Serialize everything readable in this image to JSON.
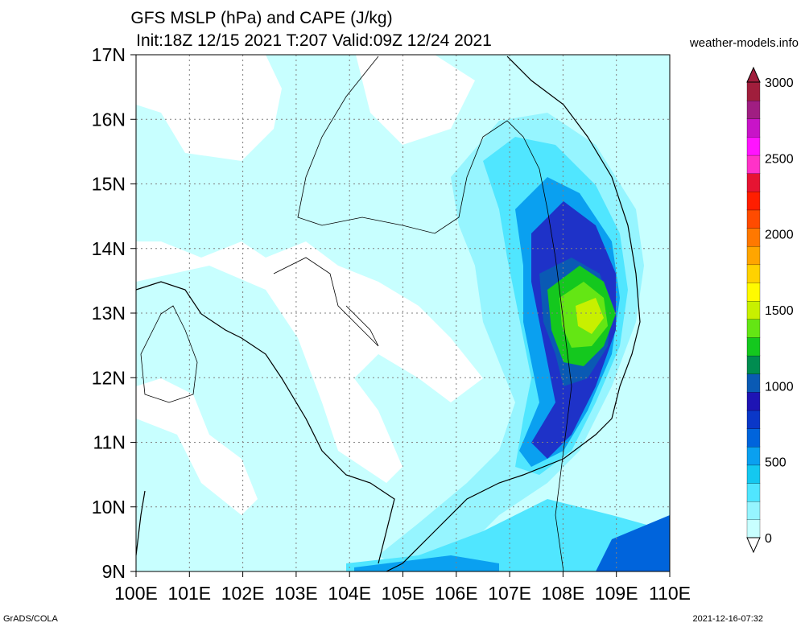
{
  "title_line1": "GFS MSLP (hPa) and CAPE (J/kg)",
  "title_line2": "Init:18Z 12/15 2021 T:207 Valid:09Z 12/24 2021",
  "site": "weather-models.info",
  "footer_left": "GrADS/COLA",
  "footer_right": "2021-12-16-07:32",
  "lat_labels": [
    "17N",
    "16N",
    "15N",
    "14N",
    "13N",
    "12N",
    "11N",
    "10N",
    "9N"
  ],
  "lon_labels": [
    "100E",
    "101E",
    "102E",
    "103E",
    "104E",
    "105E",
    "106E",
    "107E",
    "108E",
    "109E",
    "110E"
  ],
  "colorbar": {
    "labels": [
      "3000",
      "2500",
      "2000",
      "1500",
      "1000",
      "500",
      "0"
    ],
    "colors": [
      "#c8ffff",
      "#96f5ff",
      "#50e6ff",
      "#14c8f0",
      "#0aa0f0",
      "#0064dc",
      "#0a37c8",
      "#1e14b4",
      "#0a5ab4",
      "#008c50",
      "#14c81e",
      "#64e614",
      "#c8f000",
      "#fffa00",
      "#ffd200",
      "#ffa500",
      "#ff7800",
      "#ff4b00",
      "#ff1e00",
      "#e61432",
      "#ff32c8",
      "#ff14ff",
      "#c814c8",
      "#a01e82",
      "#a01e3c"
    ]
  },
  "cape_palette": {
    "none": "#ffffff",
    "c1": "#c8ffff",
    "c2": "#96f5ff",
    "c3": "#50e6ff",
    "c4": "#14c8f0",
    "c5": "#0aa0f0",
    "c6": "#0064dc",
    "c7": "#1e32c8",
    "c8": "#0a5ab4",
    "c9": "#008c50",
    "c10": "#14c81e",
    "c11": "#64e614",
    "c12": "#c8f000"
  }
}
